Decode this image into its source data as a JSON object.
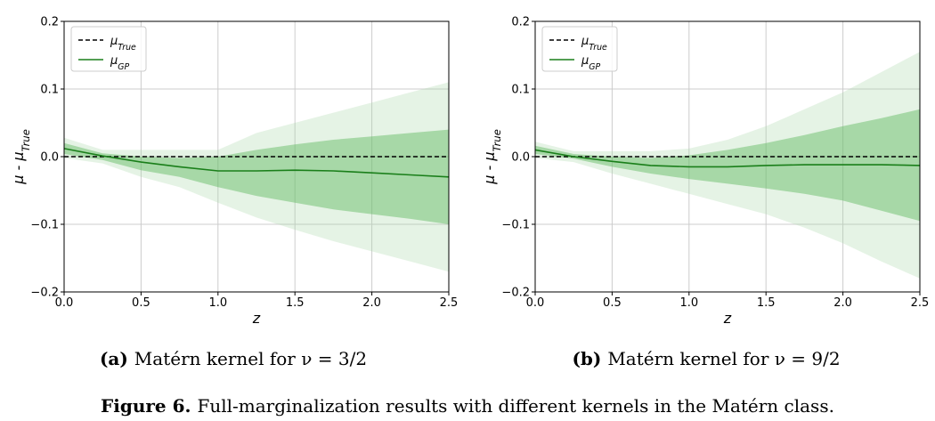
{
  "figure": {
    "caption_label": "Figure 6.",
    "caption_text": "Full-marginalization results with different kernels in the Matérn class."
  },
  "colors": {
    "gp_line": "#1a7f1a",
    "band_inner": "#5cb85c",
    "band_outer": "#a8d8a8",
    "true_line": "#000000",
    "grid": "#cccccc"
  },
  "chart_data": [
    {
      "type": "line",
      "panel_label": "(a)",
      "subtitle": "Matérn kernel for ν = 3/2",
      "xlabel": "z",
      "ylabel": "μ - μTrue",
      "xlim": [
        0.0,
        2.5
      ],
      "ylim": [
        -0.2,
        0.2
      ],
      "xticks": [
        "0.0",
        "0.5",
        "1.0",
        "1.5",
        "2.0",
        "2.5"
      ],
      "yticks": [
        "−0.2",
        "−0.1",
        "0.0",
        "0.1",
        "0.2"
      ],
      "grid": true,
      "legend_position": "top-left",
      "x": [
        0.0,
        0.25,
        0.5,
        0.75,
        1.0,
        1.25,
        1.5,
        1.75,
        2.0,
        2.25,
        2.5
      ],
      "series": [
        {
          "name": "μTrue",
          "style": "dashed",
          "values": [
            0,
            0,
            0,
            0,
            0,
            0,
            0,
            0,
            0,
            0,
            0
          ]
        },
        {
          "name": "μGP",
          "style": "solid",
          "values": [
            0.012,
            0.001,
            -0.008,
            -0.015,
            -0.021,
            -0.021,
            -0.02,
            -0.021,
            -0.024,
            -0.027,
            -0.03
          ]
        }
      ],
      "bands": [
        {
          "level": "1sigma",
          "lower": [
            0.004,
            -0.005,
            -0.02,
            -0.03,
            -0.045,
            -0.058,
            -0.068,
            -0.078,
            -0.085,
            -0.092,
            -0.1
          ],
          "upper": [
            0.02,
            0.005,
            0.0,
            -0.002,
            0.0,
            0.01,
            0.018,
            0.025,
            0.03,
            0.035,
            0.04
          ]
        },
        {
          "level": "2sigma",
          "lower": [
            -0.002,
            -0.01,
            -0.03,
            -0.045,
            -0.068,
            -0.09,
            -0.108,
            -0.125,
            -0.14,
            -0.155,
            -0.17
          ],
          "upper": [
            0.028,
            0.01,
            0.01,
            0.01,
            0.01,
            0.035,
            0.05,
            0.065,
            0.08,
            0.095,
            0.11
          ]
        }
      ]
    },
    {
      "type": "line",
      "panel_label": "(b)",
      "subtitle": "Matérn kernel for ν = 9/2",
      "xlabel": "z",
      "ylabel": "μ - μTrue",
      "xlim": [
        0.0,
        2.5
      ],
      "ylim": [
        -0.2,
        0.2
      ],
      "xticks": [
        "0.0",
        "0.5",
        "1.0",
        "1.5",
        "2.0",
        "2.5"
      ],
      "yticks": [
        "−0.2",
        "−0.1",
        "0.0",
        "0.1",
        "0.2"
      ],
      "grid": true,
      "legend_position": "top-left",
      "x": [
        0.0,
        0.25,
        0.5,
        0.75,
        1.0,
        1.25,
        1.5,
        1.75,
        2.0,
        2.25,
        2.5
      ],
      "series": [
        {
          "name": "μTrue",
          "style": "dashed",
          "values": [
            0,
            0,
            0,
            0,
            0,
            0,
            0,
            0,
            0,
            0,
            0
          ]
        },
        {
          "name": "μGP",
          "style": "solid",
          "values": [
            0.01,
            0.0,
            -0.007,
            -0.013,
            -0.015,
            -0.015,
            -0.013,
            -0.012,
            -0.012,
            -0.012,
            -0.013
          ]
        }
      ],
      "bands": [
        {
          "level": "1sigma",
          "lower": [
            0.004,
            -0.003,
            -0.015,
            -0.025,
            -0.033,
            -0.04,
            -0.047,
            -0.055,
            -0.065,
            -0.08,
            -0.095
          ],
          "upper": [
            0.016,
            0.004,
            0.0,
            -0.002,
            0.002,
            0.01,
            0.02,
            0.032,
            0.045,
            0.057,
            0.07
          ]
        },
        {
          "level": "2sigma",
          "lower": [
            -0.002,
            -0.008,
            -0.025,
            -0.04,
            -0.055,
            -0.07,
            -0.085,
            -0.105,
            -0.128,
            -0.155,
            -0.18
          ],
          "upper": [
            0.022,
            0.008,
            0.008,
            0.008,
            0.012,
            0.025,
            0.045,
            0.07,
            0.095,
            0.125,
            0.155
          ]
        }
      ]
    }
  ]
}
